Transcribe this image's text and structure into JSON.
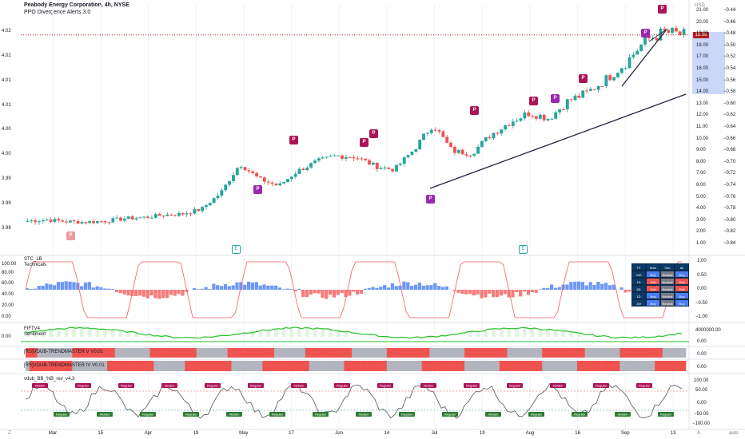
{
  "header": {
    "title": "Peabody Energy Corporation, 4h, NYSE",
    "subtitle": "PPO Divergence Alerts 3.0",
    "currency": "USD"
  },
  "price_badge": "18.96",
  "right_axis_ticks": [
    "21.00",
    "20.00",
    "19.00",
    "18.00",
    "17.00",
    "16.00",
    "15.00",
    "14.00",
    "13.00",
    "12.00",
    "11.00",
    "10.00",
    "9.00",
    "8.00",
    "7.00",
    "6.00",
    "5.00",
    "4.00",
    "3.00",
    "2.00",
    "1.00"
  ],
  "far_right_ticks": [
    "−0.44",
    "−0.46",
    "−0.48",
    "−0.50",
    "−0.52",
    "−0.54",
    "−0.56",
    "−0.58",
    "−0.60",
    "−0.62",
    "−0.64",
    "−0.66",
    "−0.68",
    "−0.70",
    "−0.72",
    "−0.74",
    "−0.76",
    "−0.78",
    "−0.80",
    "−0.82",
    "−0.84"
  ],
  "left_axis_ticks": [
    "4.02",
    "4.02",
    "4.01",
    "4.01",
    "4.00",
    "4.00",
    "3.99",
    "3.99",
    "3.98"
  ],
  "x_ticks": [
    {
      "label": "Mar"
    },
    {
      "label": "15"
    },
    {
      "label": "Apr"
    },
    {
      "label": "19"
    },
    {
      "label": "May"
    },
    {
      "label": "17"
    },
    {
      "label": "Jun"
    },
    {
      "label": "14"
    },
    {
      "label": "Jul"
    },
    {
      "label": "19"
    },
    {
      "label": "Aug"
    },
    {
      "label": "16"
    },
    {
      "label": "Sep"
    },
    {
      "label": "13"
    }
  ],
  "p_markers": [
    "P",
    "P",
    "P",
    "P",
    "P",
    "P",
    "P",
    "P",
    "P",
    "P",
    "P",
    "P"
  ],
  "e_markers": [
    "E",
    "E"
  ],
  "panels": {
    "stc": {
      "title": "STC_LB",
      "subtitle": "Technicals",
      "left_ticks": [
        "100.00",
        "80.00",
        "60.00",
        "40.00",
        "20.00",
        "0.00"
      ],
      "right_ticks": [
        "1.00",
        "0.50",
        "0.00",
        "−0.50",
        "−1.00"
      ]
    },
    "fiftv": {
      "title": "FIFTV4",
      "subtitle": "Sentiment",
      "left_ticks": [
        "0.00"
      ],
      "right_ticks": [
        "4000000.00",
        "0.00"
      ]
    },
    "trend1": {
      "title": "[RS]VDUB-TRENDMASTER V V0.01",
      "right_tick": "0.00"
    },
    "trend2": {
      "title": "[RS]VDUB-TRENDMASTER IV V0.01",
      "right_tick": "0.00"
    },
    "bb": {
      "title": "vdub_BB_%B_rev_v4.3",
      "right_ticks": [
        "100.00",
        "50.00",
        "0.00",
        "−50.00",
        "−100.00"
      ]
    }
  },
  "tech_table": {
    "header": [
      "TF",
      "MAs",
      "Osc",
      "All"
    ],
    "rows": [
      [
        "240",
        "Buy",
        "Neutral",
        "Buy"
      ],
      [
        "1D",
        "Sell",
        "Neutral",
        "Sell"
      ],
      [
        "6D",
        "Sell",
        "Neutral",
        "Sell"
      ],
      [
        "1D",
        "Buy",
        "Neutral",
        "Buy"
      ],
      [
        "1W",
        "Buy",
        "Neutral",
        "Buy"
      ]
    ]
  },
  "signal_labels": {
    "regular": "Regular",
    "hidden": "Hidden"
  },
  "bottom_buttons": {
    "left": "Z",
    "right_a": "A",
    "right_auto": "auto"
  },
  "colors": {
    "up": "#26a69a",
    "down": "#ef5350",
    "p_bull": "#9c27b0",
    "p_bear": "#ad1457",
    "trend_red": "#ef5350",
    "trend_grey": "#b2b5be",
    "fiftv_green": "#26c126",
    "stc_blue": "#4a7ef5",
    "stc_red": "#f45b5b"
  },
  "chart_data": {
    "type": "candlestick",
    "title": "Peabody Energy Corporation, 4h, NYSE",
    "ylabel": "USD",
    "ylim": [
      1.0,
      21.0
    ],
    "x": [
      "Mar",
      "15",
      "Apr",
      "19",
      "May",
      "17",
      "Jun",
      "14",
      "Jul",
      "19",
      "Aug",
      "16",
      "Sep",
      "13"
    ],
    "close_path": [
      3.0,
      3.1,
      2.95,
      2.9,
      3.0,
      3.2,
      3.3,
      3.5,
      3.6,
      4.0,
      5.4,
      7.9,
      6.6,
      6.0,
      7.3,
      8.1,
      8.6,
      8.5,
      7.7,
      7.4,
      9.1,
      11.3,
      9.0,
      8.8,
      10.4,
      11.5,
      12.3,
      11.8,
      13.3,
      14.0,
      15.2,
      16.6,
      18.5,
      19.2,
      18.96
    ],
    "last_price": 18.96
  }
}
